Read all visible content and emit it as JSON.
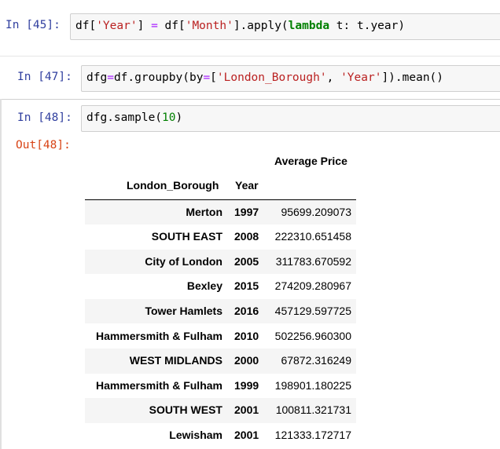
{
  "cells": [
    {
      "prompt": "In [45]:",
      "code_parts": [
        {
          "t": "df[",
          "c": ""
        },
        {
          "t": "'Year'",
          "c": "str"
        },
        {
          "t": "] ",
          "c": ""
        },
        {
          "t": "=",
          "c": "op"
        },
        {
          "t": " df[",
          "c": ""
        },
        {
          "t": "'Month'",
          "c": "str"
        },
        {
          "t": "].apply(",
          "c": ""
        },
        {
          "t": "lambda",
          "c": "kw"
        },
        {
          "t": " t: t.year)",
          "c": ""
        }
      ]
    },
    {
      "prompt": "In [47]:",
      "code_parts": [
        {
          "t": "dfg",
          "c": ""
        },
        {
          "t": "=",
          "c": "op"
        },
        {
          "t": "df.groupby(by",
          "c": ""
        },
        {
          "t": "=",
          "c": "op"
        },
        {
          "t": "[",
          "c": ""
        },
        {
          "t": "'London_Borough'",
          "c": "str"
        },
        {
          "t": ", ",
          "c": ""
        },
        {
          "t": "'Year'",
          "c": "str"
        },
        {
          "t": "]).mean()",
          "c": ""
        }
      ]
    },
    {
      "prompt": "In [48]:",
      "code_parts": [
        {
          "t": "dfg.sample(",
          "c": ""
        },
        {
          "t": "10",
          "c": "num"
        },
        {
          "t": ")",
          "c": ""
        }
      ]
    }
  ],
  "output_prompt": "Out[48]:",
  "dataframe": {
    "column_header": "Average Price",
    "index_headers": [
      "London_Borough",
      "Year"
    ],
    "rows": [
      {
        "borough": "Merton",
        "year": "1997",
        "price": "95699.209073"
      },
      {
        "borough": "SOUTH EAST",
        "year": "2008",
        "price": "222310.651458"
      },
      {
        "borough": "City of London",
        "year": "2005",
        "price": "311783.670592"
      },
      {
        "borough": "Bexley",
        "year": "2015",
        "price": "274209.280967"
      },
      {
        "borough": "Tower Hamlets",
        "year": "2016",
        "price": "457129.597725"
      },
      {
        "borough": "Hammersmith & Fulham",
        "year": "2010",
        "price": "502256.960300"
      },
      {
        "borough": "WEST MIDLANDS",
        "year": "2000",
        "price": "67872.316249"
      },
      {
        "borough": "Hammersmith & Fulham",
        "year": "1999",
        "price": "198901.180225"
      },
      {
        "borough": "SOUTH WEST",
        "year": "2001",
        "price": "100811.321731"
      },
      {
        "borough": "Lewisham",
        "year": "2001",
        "price": "121333.172717"
      }
    ]
  }
}
